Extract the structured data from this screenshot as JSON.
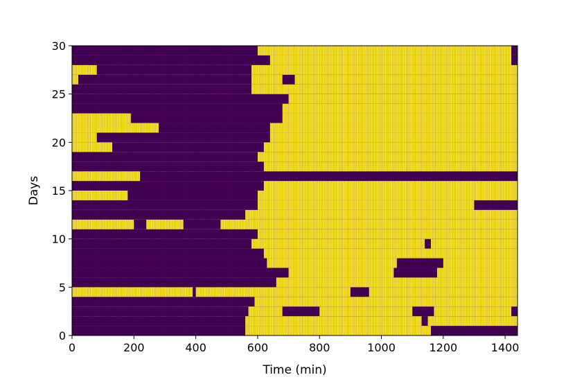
{
  "chart_data": {
    "type": "heatmap",
    "title": "",
    "xlabel": "Time (min)",
    "ylabel": "Days",
    "xlim": [
      0,
      1440
    ],
    "ylim": [
      0,
      30
    ],
    "xticks": [
      0,
      200,
      400,
      600,
      800,
      1000,
      1200,
      1400
    ],
    "yticks": [
      0,
      5,
      10,
      15,
      20,
      25,
      30
    ],
    "grid": false,
    "legend": "none",
    "colors": {
      "off": "#440154",
      "on": "#fde725",
      "stripe": "#2a0a3a"
    },
    "cell_minutes": 5,
    "rows_on_intervals": [
      {
        "day": 0,
        "on": [
          [
            560,
            1160
          ]
        ]
      },
      {
        "day": 1,
        "on": [
          [
            560,
            1130
          ],
          [
            1150,
            1440
          ]
        ]
      },
      {
        "day": 2,
        "on": [
          [
            570,
            680
          ],
          [
            800,
            1100
          ],
          [
            1170,
            1420
          ]
        ]
      },
      {
        "day": 3,
        "on": [
          [
            590,
            1440
          ]
        ]
      },
      {
        "day": 4,
        "on": [
          [
            0,
            390
          ],
          [
            400,
            900
          ],
          [
            960,
            1440
          ]
        ]
      },
      {
        "day": 5,
        "on": [
          [
            660,
            1440
          ]
        ]
      },
      {
        "day": 6,
        "on": [
          [
            700,
            1040
          ],
          [
            1180,
            1440
          ]
        ]
      },
      {
        "day": 7,
        "on": [
          [
            630,
            1050
          ],
          [
            1200,
            1440
          ]
        ]
      },
      {
        "day": 8,
        "on": [
          [
            620,
            1440
          ]
        ]
      },
      {
        "day": 9,
        "on": [
          [
            580,
            1140
          ],
          [
            1160,
            1440
          ]
        ]
      },
      {
        "day": 10,
        "on": [
          [
            600,
            1440
          ]
        ]
      },
      {
        "day": 11,
        "on": [
          [
            0,
            200
          ],
          [
            240,
            360
          ],
          [
            480,
            1440
          ]
        ]
      },
      {
        "day": 12,
        "on": [
          [
            560,
            1440
          ]
        ]
      },
      {
        "day": 13,
        "on": [
          [
            600,
            1300
          ]
        ]
      },
      {
        "day": 14,
        "on": [
          [
            0,
            180
          ],
          [
            600,
            1440
          ]
        ]
      },
      {
        "day": 15,
        "on": [
          [
            620,
            1440
          ]
        ]
      },
      {
        "day": 16,
        "on": [
          [
            0,
            220
          ]
        ]
      },
      {
        "day": 17,
        "on": [
          [
            620,
            1440
          ]
        ]
      },
      {
        "day": 18,
        "on": [
          [
            600,
            1440
          ]
        ]
      },
      {
        "day": 19,
        "on": [
          [
            0,
            130
          ],
          [
            620,
            1440
          ]
        ]
      },
      {
        "day": 20,
        "on": [
          [
            0,
            80
          ],
          [
            640,
            1440
          ]
        ]
      },
      {
        "day": 21,
        "on": [
          [
            0,
            280
          ],
          [
            640,
            1440
          ]
        ]
      },
      {
        "day": 22,
        "on": [
          [
            0,
            190
          ],
          [
            680,
            1440
          ]
        ]
      },
      {
        "day": 23,
        "on": [
          [
            680,
            1440
          ]
        ]
      },
      {
        "day": 24,
        "on": [
          [
            700,
            1440
          ]
        ]
      },
      {
        "day": 25,
        "on": [
          [
            580,
            1440
          ]
        ]
      },
      {
        "day": 26,
        "on": [
          [
            0,
            20
          ],
          [
            580,
            680
          ],
          [
            720,
            1440
          ]
        ]
      },
      {
        "day": 27,
        "on": [
          [
            0,
            80
          ],
          [
            580,
            1440
          ]
        ]
      },
      {
        "day": 28,
        "on": [
          [
            640,
            1420
          ]
        ]
      },
      {
        "day": 29,
        "on": [
          [
            600,
            1420
          ]
        ]
      }
    ]
  }
}
